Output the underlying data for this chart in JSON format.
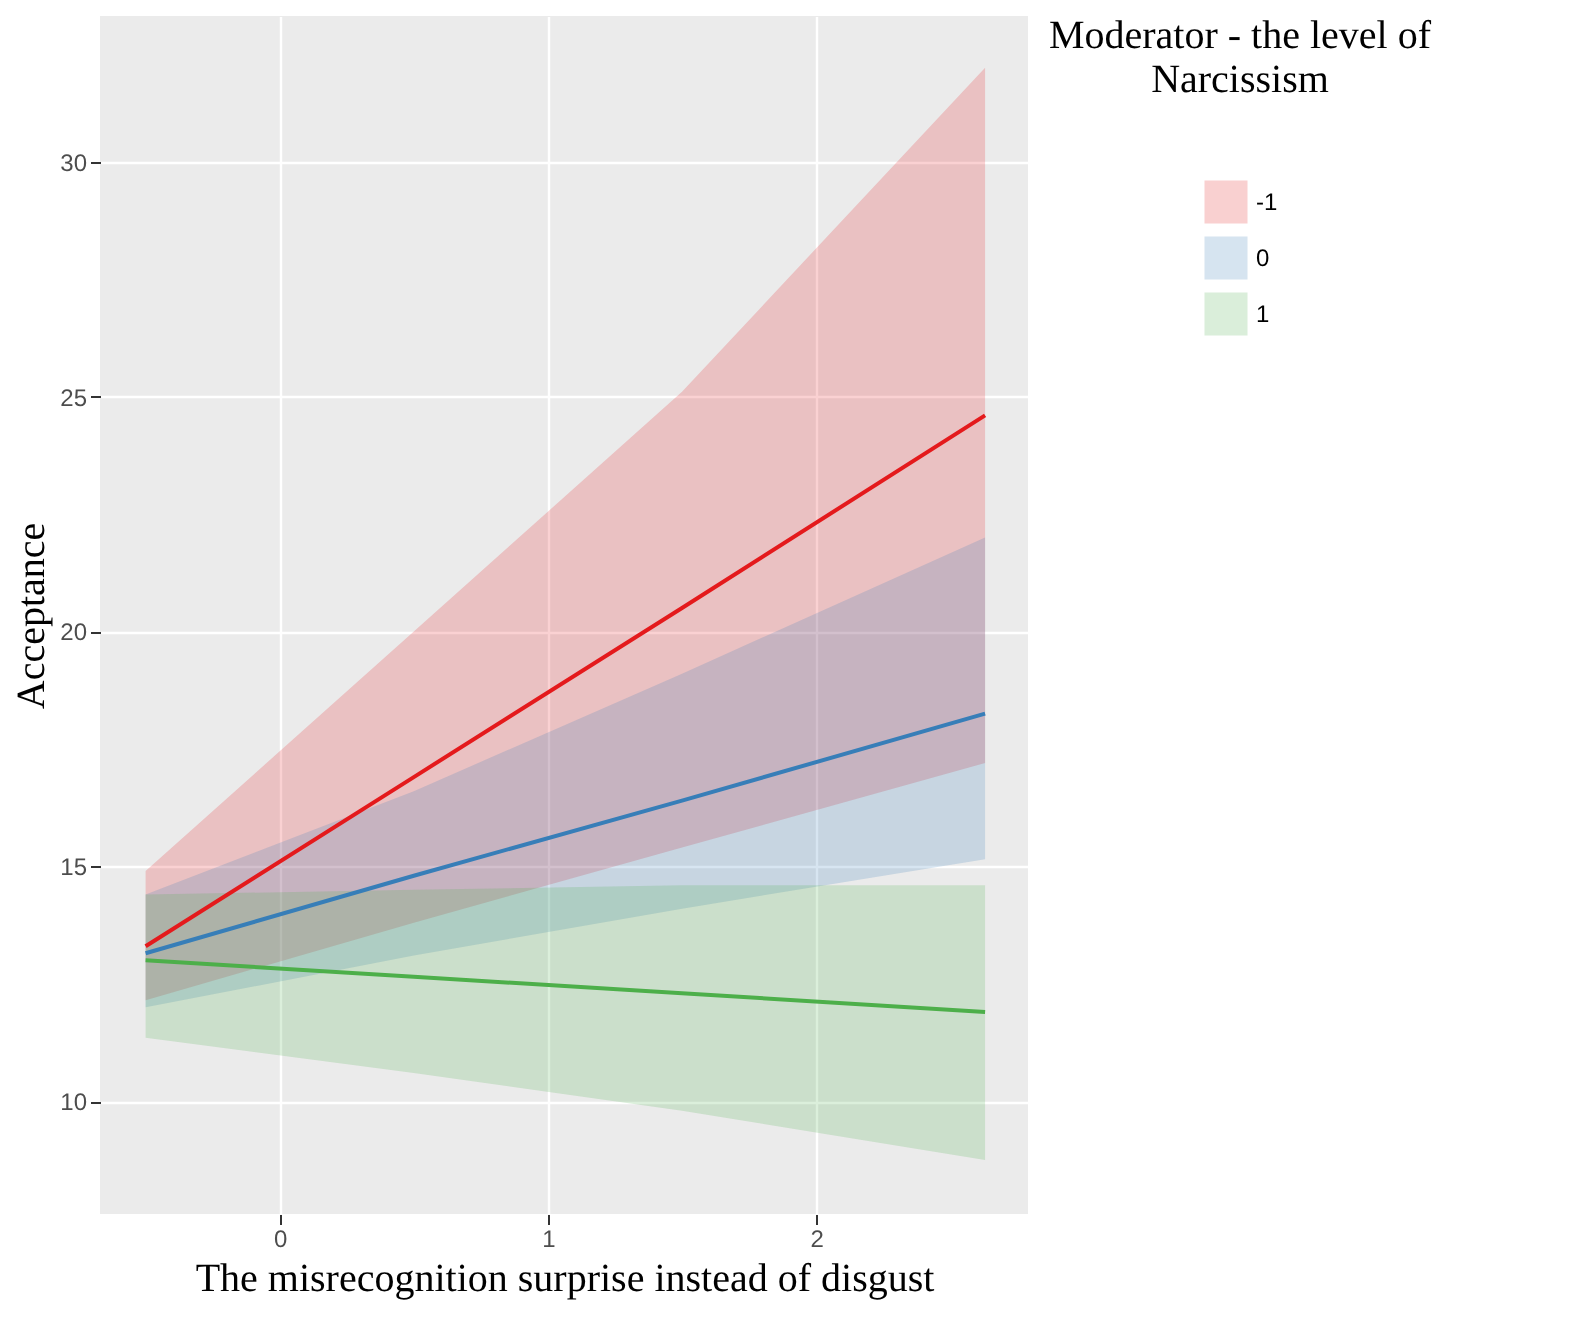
{
  "chart_data": {
    "type": "line",
    "xlabel": "The misrecognition surprise instead of disgust",
    "ylabel": "Acceptance",
    "legend_title": "Moderator - the level of Narcissism",
    "series": [
      {
        "name": "-1",
        "color": "#e41a1c",
        "x": [
          -0.5,
          0.5,
          1.5,
          2.63
        ],
        "values": [
          13.3,
          16.9,
          20.5,
          24.6
        ],
        "lower": [
          12.15,
          13.8,
          15.4,
          17.2
        ],
        "upper": [
          14.9,
          20.0,
          25.1,
          32.0
        ]
      },
      {
        "name": "0",
        "color": "#377eb8",
        "x": [
          -0.5,
          0.5,
          1.5,
          2.63
        ],
        "values": [
          13.15,
          14.8,
          16.4,
          18.25
        ],
        "lower": [
          12.0,
          13.1,
          14.1,
          15.15
        ],
        "upper": [
          14.4,
          16.6,
          19.1,
          22.0
        ]
      },
      {
        "name": "1",
        "color": "#4daf4a",
        "x": [
          -0.5,
          0.5,
          1.5,
          2.63
        ],
        "values": [
          13.0,
          12.65,
          12.3,
          11.9
        ],
        "lower": [
          11.35,
          10.6,
          9.8,
          8.75
        ],
        "upper": [
          14.4,
          14.5,
          14.6,
          14.6
        ]
      }
    ],
    "xlim": [
      -0.67,
      2.79
    ],
    "xticks": [
      0,
      1,
      2
    ],
    "ylim": [
      7.6,
      33.1
    ],
    "yticks": [
      10,
      15,
      20,
      25,
      30
    ],
    "grid": true,
    "legend": "right",
    "line_style": "solid"
  }
}
